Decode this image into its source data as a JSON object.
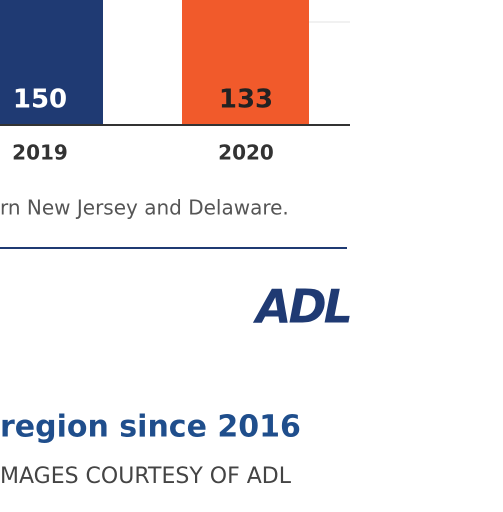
{
  "chart_data": {
    "type": "bar",
    "categories": [
      "2019",
      "2020"
    ],
    "values": [
      150,
      133
    ],
    "colors": [
      "#1f3a73",
      "#f15a2b"
    ]
  },
  "caption": "rn New Jersey and Delaware.",
  "logo": "ADL",
  "headline": "region since 2016",
  "credit": "MAGES COURTESY OF ADL"
}
